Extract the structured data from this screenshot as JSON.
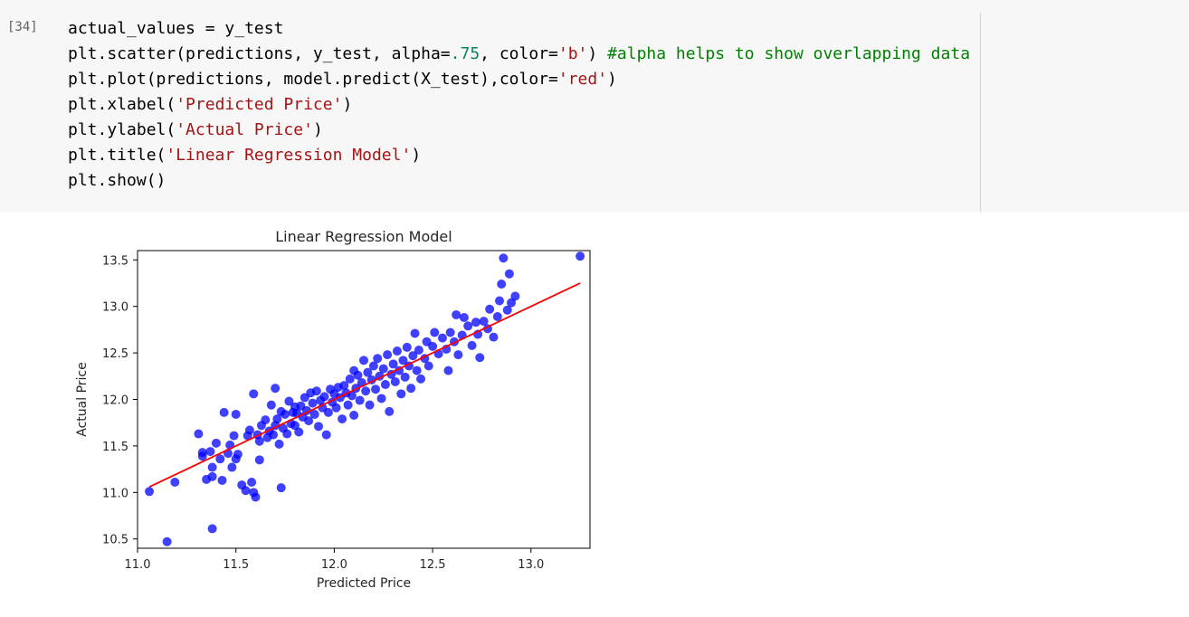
{
  "cell": {
    "execution_count": "[34]",
    "code_lines": [
      [
        {
          "t": "actual_values = y_test",
          "c": ""
        }
      ],
      [
        {
          "t": "plt.scatter(predictions, y_test, alpha=",
          "c": ""
        },
        {
          "t": ".75",
          "c": "num"
        },
        {
          "t": ", color=",
          "c": ""
        },
        {
          "t": "'b'",
          "c": "str"
        },
        {
          "t": ") ",
          "c": ""
        },
        {
          "t": "#alpha helps to show overlapping data",
          "c": "com"
        }
      ],
      [
        {
          "t": "plt.plot(predictions, model.predict(X_test),color=",
          "c": ""
        },
        {
          "t": "'red'",
          "c": "str"
        },
        {
          "t": ")",
          "c": ""
        }
      ],
      [
        {
          "t": "plt.xlabel(",
          "c": ""
        },
        {
          "t": "'Predicted Price'",
          "c": "str"
        },
        {
          "t": ")",
          "c": ""
        }
      ],
      [
        {
          "t": "plt.ylabel(",
          "c": ""
        },
        {
          "t": "'Actual Price'",
          "c": "str"
        },
        {
          "t": ")",
          "c": ""
        }
      ],
      [
        {
          "t": "plt.title(",
          "c": ""
        },
        {
          "t": "'Linear Regression Model'",
          "c": "str"
        },
        {
          "t": ")",
          "c": ""
        }
      ],
      [
        {
          "t": "plt.show()",
          "c": ""
        }
      ]
    ]
  },
  "colors": {
    "scatter": "#0000ff",
    "line": "#ff0000",
    "cell_background": "#f7f7f7"
  },
  "chart_data": {
    "type": "scatter",
    "title": "Linear Regression Model",
    "xlabel": "Predicted Price",
    "ylabel": "Actual Price",
    "xlim": [
      11.0,
      13.3
    ],
    "ylim": [
      10.4,
      13.6
    ],
    "xticks": [
      "11.0",
      "11.5",
      "12.0",
      "12.5",
      "13.0"
    ],
    "yticks": [
      "10.5",
      "11.0",
      "11.5",
      "12.0",
      "12.5",
      "13.0",
      "13.5"
    ],
    "grid": false,
    "series": [
      {
        "type": "scatter",
        "points": [
          [
            11.06,
            11.01
          ],
          [
            11.15,
            10.47
          ],
          [
            11.19,
            11.11
          ],
          [
            11.31,
            11.63
          ],
          [
            11.33,
            11.43
          ],
          [
            11.33,
            11.39
          ],
          [
            11.35,
            11.14
          ],
          [
            11.37,
            11.44
          ],
          [
            11.38,
            11.27
          ],
          [
            11.38,
            10.61
          ],
          [
            11.38,
            11.17
          ],
          [
            11.4,
            11.53
          ],
          [
            11.42,
            11.36
          ],
          [
            11.43,
            11.13
          ],
          [
            11.44,
            11.86
          ],
          [
            11.46,
            11.42
          ],
          [
            11.47,
            11.51
          ],
          [
            11.48,
            11.27
          ],
          [
            11.49,
            11.61
          ],
          [
            11.5,
            11.84
          ],
          [
            11.5,
            11.36
          ],
          [
            11.51,
            11.41
          ],
          [
            11.53,
            11.08
          ],
          [
            11.55,
            11.02
          ],
          [
            11.56,
            11.61
          ],
          [
            11.57,
            11.67
          ],
          [
            11.58,
            11.11
          ],
          [
            11.59,
            11.0
          ],
          [
            11.59,
            12.06
          ],
          [
            11.6,
            10.95
          ],
          [
            11.61,
            11.62
          ],
          [
            11.62,
            11.55
          ],
          [
            11.62,
            11.35
          ],
          [
            11.63,
            11.72
          ],
          [
            11.65,
            11.78
          ],
          [
            11.66,
            11.59
          ],
          [
            11.67,
            11.66
          ],
          [
            11.68,
            11.94
          ],
          [
            11.69,
            11.62
          ],
          [
            11.7,
            12.12
          ],
          [
            11.7,
            11.72
          ],
          [
            11.71,
            11.79
          ],
          [
            11.72,
            11.52
          ],
          [
            11.73,
            11.05
          ],
          [
            11.73,
            11.87
          ],
          [
            11.74,
            11.69
          ],
          [
            11.75,
            11.84
          ],
          [
            11.76,
            11.63
          ],
          [
            11.77,
            11.98
          ],
          [
            11.78,
            11.74
          ],
          [
            11.79,
            11.86
          ],
          [
            11.8,
            11.72
          ],
          [
            11.8,
            11.92
          ],
          [
            11.81,
            11.85
          ],
          [
            11.82,
            11.65
          ],
          [
            11.83,
            11.93
          ],
          [
            11.84,
            11.81
          ],
          [
            11.85,
            12.02
          ],
          [
            11.86,
            11.88
          ],
          [
            11.87,
            11.77
          ],
          [
            11.88,
            12.07
          ],
          [
            11.89,
            11.96
          ],
          [
            11.9,
            11.84
          ],
          [
            11.91,
            12.09
          ],
          [
            11.92,
            11.71
          ],
          [
            11.93,
            11.99
          ],
          [
            11.94,
            11.91
          ],
          [
            11.95,
            12.03
          ],
          [
            11.96,
            11.62
          ],
          [
            11.97,
            11.86
          ],
          [
            11.98,
            12.11
          ],
          [
            11.99,
            11.97
          ],
          [
            12.0,
            12.06
          ],
          [
            12.01,
            11.91
          ],
          [
            12.02,
            12.13
          ],
          [
            12.03,
            12.02
          ],
          [
            12.04,
            11.79
          ],
          [
            12.05,
            12.15
          ],
          [
            12.06,
            12.07
          ],
          [
            12.07,
            11.94
          ],
          [
            12.08,
            12.22
          ],
          [
            12.09,
            12.04
          ],
          [
            12.1,
            12.31
          ],
          [
            12.1,
            11.83
          ],
          [
            12.11,
            12.12
          ],
          [
            12.12,
            12.26
          ],
          [
            12.13,
            11.99
          ],
          [
            12.14,
            12.18
          ],
          [
            12.15,
            12.42
          ],
          [
            12.16,
            12.09
          ],
          [
            12.17,
            12.29
          ],
          [
            12.18,
            11.94
          ],
          [
            12.19,
            12.21
          ],
          [
            12.2,
            12.36
          ],
          [
            12.21,
            12.11
          ],
          [
            12.22,
            12.44
          ],
          [
            12.23,
            12.25
          ],
          [
            12.24,
            12.01
          ],
          [
            12.25,
            12.33
          ],
          [
            12.26,
            12.16
          ],
          [
            12.27,
            12.48
          ],
          [
            12.28,
            11.87
          ],
          [
            12.29,
            12.27
          ],
          [
            12.3,
            12.38
          ],
          [
            12.31,
            12.19
          ],
          [
            12.32,
            12.52
          ],
          [
            12.33,
            12.31
          ],
          [
            12.34,
            12.06
          ],
          [
            12.35,
            12.42
          ],
          [
            12.36,
            12.24
          ],
          [
            12.37,
            12.56
          ],
          [
            12.38,
            12.36
          ],
          [
            12.39,
            12.12
          ],
          [
            12.4,
            12.47
          ],
          [
            12.41,
            12.71
          ],
          [
            12.42,
            12.31
          ],
          [
            12.43,
            12.53
          ],
          [
            12.44,
            12.22
          ],
          [
            12.46,
            12.44
          ],
          [
            12.47,
            12.62
          ],
          [
            12.48,
            12.36
          ],
          [
            12.5,
            12.57
          ],
          [
            12.51,
            12.72
          ],
          [
            12.53,
            12.49
          ],
          [
            12.55,
            12.66
          ],
          [
            12.57,
            12.54
          ],
          [
            12.58,
            12.31
          ],
          [
            12.59,
            12.72
          ],
          [
            12.61,
            12.62
          ],
          [
            12.62,
            12.91
          ],
          [
            12.63,
            12.48
          ],
          [
            12.65,
            12.69
          ],
          [
            12.66,
            12.88
          ],
          [
            12.68,
            12.79
          ],
          [
            12.7,
            12.58
          ],
          [
            12.72,
            12.83
          ],
          [
            12.73,
            12.7
          ],
          [
            12.74,
            12.45
          ],
          [
            12.76,
            12.84
          ],
          [
            12.78,
            12.76
          ],
          [
            12.79,
            12.97
          ],
          [
            12.81,
            12.67
          ],
          [
            12.83,
            12.89
          ],
          [
            12.84,
            13.06
          ],
          [
            12.85,
            13.24
          ],
          [
            12.86,
            13.52
          ],
          [
            12.88,
            12.96
          ],
          [
            12.89,
            13.35
          ],
          [
            12.9,
            13.04
          ],
          [
            12.92,
            13.11
          ],
          [
            13.25,
            13.54
          ]
        ]
      },
      {
        "type": "line",
        "points": [
          [
            11.06,
            11.06
          ],
          [
            13.25,
            13.25
          ]
        ]
      }
    ]
  }
}
